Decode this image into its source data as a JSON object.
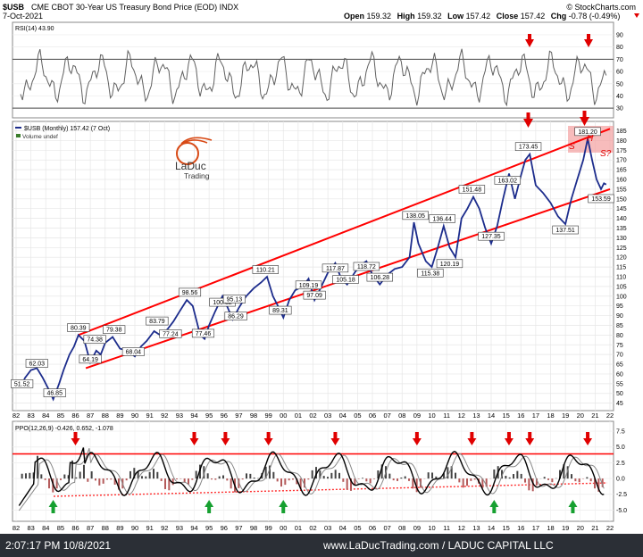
{
  "header": {
    "symbol": "$USB",
    "description": "CME CBOT 30-Year US Treasury Bond Price (EOD)  INDX",
    "date": "7-Oct-2021",
    "watermark": "© StockCharts.com",
    "open_label": "Open",
    "open": "159.32",
    "high_label": "High",
    "high": "159.32",
    "low_label": "Low",
    "low": "157.42",
    "close_label": "Close",
    "close": "157.42",
    "chg_label": "Chg",
    "chg": "-0.78 (-0.49%)"
  },
  "logo": {
    "line1": "LaDuc",
    "line2": "Trading"
  },
  "rsi_panel": {
    "label": "RSI(14) 43.90"
  },
  "price_panel": {
    "label": "$USB (Monthly) 157.42 (7 Oct)",
    "volume_label": "Volume undef"
  },
  "ppo_panel": {
    "label": "PPO(12,26,9) -0.426, 0.652, -1.078"
  },
  "footer": {
    "timestamp": "2:07:17 PM 10/8/2021",
    "credit": "www.LaDucTrading.com / LADUC CAPITAL LLC"
  },
  "colors": {
    "price": "#1c2c8c",
    "channel": "#ff0000",
    "rsi": "#555555",
    "arrow_red": "#e00000",
    "arrow_green": "#16a030",
    "histogram": "#9c4040"
  },
  "chart_data": [
    {
      "type": "line",
      "title": "$USB (Monthly)",
      "x_ticks": [
        "82",
        "83",
        "84",
        "85",
        "86",
        "87",
        "88",
        "89",
        "90",
        "91",
        "92",
        "93",
        "94",
        "95",
        "96",
        "97",
        "98",
        "99",
        "00",
        "01",
        "02",
        "03",
        "04",
        "05",
        "06",
        "07",
        "08",
        "09",
        "10",
        "11",
        "12",
        "13",
        "14",
        "15",
        "16",
        "17",
        "18",
        "19",
        "20",
        "21",
        "22"
      ],
      "y_ticks": [
        45,
        50,
        55,
        60,
        65,
        70,
        75,
        80,
        85,
        90,
        95,
        100,
        105,
        110,
        115,
        120,
        125,
        130,
        135,
        140,
        145,
        150,
        155,
        160,
        165,
        170,
        175,
        180,
        185
      ],
      "ylim": [
        43,
        188
      ],
      "annotations": [
        {
          "x": 82.4,
          "y": 51.52,
          "text": "51.52"
        },
        {
          "x": 83.4,
          "y": 62.03,
          "text": "62.03"
        },
        {
          "x": 84.6,
          "y": 46.85,
          "text": "46.85"
        },
        {
          "x": 86.2,
          "y": 80.39,
          "text": "80.39"
        },
        {
          "x": 87.3,
          "y": 74.38,
          "text": "74.38"
        },
        {
          "x": 87.0,
          "y": 64.19,
          "text": "64.19"
        },
        {
          "x": 88.6,
          "y": 79.38,
          "text": "79.38"
        },
        {
          "x": 89.9,
          "y": 68.04,
          "text": "68.04"
        },
        {
          "x": 91.5,
          "y": 83.79,
          "text": "83.79"
        },
        {
          "x": 92.4,
          "y": 77.24,
          "text": "77.24"
        },
        {
          "x": 93.7,
          "y": 98.56,
          "text": "98.56"
        },
        {
          "x": 94.6,
          "y": 77.46,
          "text": "77.46"
        },
        {
          "x": 95.9,
          "y": 100.32,
          "text": "100.32"
        },
        {
          "x": 96.7,
          "y": 95.13,
          "text": "95.13"
        },
        {
          "x": 96.8,
          "y": 86.29,
          "text": "86.29"
        },
        {
          "x": 98.8,
          "y": 110.21,
          "text": "110.21"
        },
        {
          "x": 99.8,
          "y": 89.31,
          "text": "89.31"
        },
        {
          "x": 101.7,
          "y": 109.19,
          "text": "109.19"
        },
        {
          "x": 102.1,
          "y": 97.09,
          "text": "97.09"
        },
        {
          "x": 103.5,
          "y": 117.87,
          "text": "117.87"
        },
        {
          "x": 104.2,
          "y": 105.18,
          "text": "105.18"
        },
        {
          "x": 105.6,
          "y": 118.72,
          "text": "118.72"
        },
        {
          "x": 106.5,
          "y": 106.28,
          "text": "106.28"
        },
        {
          "x": 108.9,
          "y": 138.05,
          "text": "138.05"
        },
        {
          "x": 109.9,
          "y": 115.38,
          "text": "115.38"
        },
        {
          "x": 110.7,
          "y": 136.44,
          "text": "136.44"
        },
        {
          "x": 111.2,
          "y": 120.19,
          "text": "120.19"
        },
        {
          "x": 112.7,
          "y": 151.48,
          "text": "151.48"
        },
        {
          "x": 114.0,
          "y": 127.35,
          "text": "127.35"
        },
        {
          "x": 115.1,
          "y": 163.02,
          "text": "163.02"
        },
        {
          "x": 116.5,
          "y": 173.45,
          "text": "173.45"
        },
        {
          "x": 119.0,
          "y": 137.51,
          "text": "137.51"
        },
        {
          "x": 120.5,
          "y": 181.2,
          "text": "181.20"
        },
        {
          "x": 121.4,
          "y": 153.59,
          "text": "153.59"
        }
      ],
      "series": [
        {
          "values": [
            [
              82.3,
              53
            ],
            [
              82.6,
              58
            ],
            [
              83.0,
              62
            ],
            [
              83.4,
              63
            ],
            [
              83.8,
              58
            ],
            [
              84.2,
              52
            ],
            [
              84.5,
              47
            ],
            [
              84.9,
              55
            ],
            [
              85.2,
              62
            ],
            [
              85.6,
              70
            ],
            [
              85.9,
              74
            ],
            [
              86.2,
              80
            ],
            [
              86.6,
              77
            ],
            [
              87.0,
              66
            ],
            [
              87.4,
              72
            ],
            [
              87.7,
              70
            ],
            [
              88.0,
              76
            ],
            [
              88.5,
              79
            ],
            [
              89.0,
              73
            ],
            [
              89.5,
              72
            ],
            [
              90.0,
              69
            ],
            [
              90.4,
              74
            ],
            [
              90.8,
              77
            ],
            [
              91.3,
              82
            ],
            [
              91.7,
              80
            ],
            [
              92.2,
              83
            ],
            [
              92.6,
              87
            ],
            [
              93.0,
              92
            ],
            [
              93.5,
              98
            ],
            [
              93.9,
              95
            ],
            [
              94.4,
              80
            ],
            [
              94.7,
              78
            ],
            [
              95.0,
              85
            ],
            [
              95.4,
              92
            ],
            [
              95.9,
              100
            ],
            [
              96.2,
              95
            ],
            [
              96.6,
              88
            ],
            [
              97.0,
              94
            ],
            [
              97.5,
              100
            ],
            [
              98.0,
              104
            ],
            [
              98.5,
              107
            ],
            [
              98.9,
              110
            ],
            [
              99.3,
              100
            ],
            [
              99.7,
              94
            ],
            [
              100.0,
              89
            ],
            [
              100.4,
              98
            ],
            [
              100.8,
              103
            ],
            [
              101.3,
              105
            ],
            [
              101.7,
              109
            ],
            [
              102.1,
              98
            ],
            [
              102.5,
              104
            ],
            [
              103.0,
              112
            ],
            [
              103.5,
              117
            ],
            [
              103.9,
              109
            ],
            [
              104.3,
              106
            ],
            [
              104.8,
              112
            ],
            [
              105.2,
              116
            ],
            [
              105.6,
              118
            ],
            [
              106.0,
              111
            ],
            [
              106.5,
              106
            ],
            [
              107.0,
              111
            ],
            [
              107.5,
              114
            ],
            [
              108.0,
              115
            ],
            [
              108.5,
              120
            ],
            [
              108.8,
              138
            ],
            [
              109.1,
              127
            ],
            [
              109.6,
              118
            ],
            [
              110.0,
              115
            ],
            [
              110.4,
              125
            ],
            [
              110.8,
              136
            ],
            [
              111.2,
              125
            ],
            [
              111.6,
              120
            ],
            [
              112.0,
              140
            ],
            [
              112.4,
              145
            ],
            [
              112.8,
              151
            ],
            [
              113.2,
              145
            ],
            [
              113.6,
              135
            ],
            [
              114.0,
              127
            ],
            [
              114.4,
              136
            ],
            [
              114.8,
              150
            ],
            [
              115.2,
              163
            ],
            [
              115.6,
              150
            ],
            [
              116.0,
              162
            ],
            [
              116.3,
              170
            ],
            [
              116.6,
              173
            ],
            [
              117.0,
              157
            ],
            [
              117.5,
              153
            ],
            [
              118.0,
              148
            ],
            [
              118.5,
              141
            ],
            [
              119.0,
              137
            ],
            [
              119.4,
              150
            ],
            [
              119.8,
              160
            ],
            [
              120.2,
              170
            ],
            [
              120.5,
              181
            ],
            [
              120.8,
              170
            ],
            [
              121.1,
              160
            ],
            [
              121.4,
              155
            ],
            [
              121.6,
              158
            ],
            [
              121.75,
              157.4
            ]
          ]
        }
      ]
    },
    {
      "type": "line",
      "title": "RSI(14)",
      "y_ticks": [
        30,
        40,
        50,
        60,
        70,
        80,
        90
      ],
      "ylim": [
        25,
        98
      ],
      "reference_lines": [
        30,
        70
      ],
      "current": 43.9
    },
    {
      "type": "line",
      "title": "PPO(12,26,9)",
      "y_ticks": [
        7.5,
        5.0,
        2.5,
        0.0,
        -2.5,
        -5.0
      ],
      "ylim": [
        -6.5,
        8.5
      ],
      "reference_lines": [
        3.9
      ],
      "ppo": -0.426,
      "signal": 0.652,
      "histogram": -1.078,
      "sell_arrows_years": [
        86.0,
        94.0,
        96.1,
        99.0,
        103.5,
        109.0,
        112.7,
        115.2,
        116.6,
        120.5
      ],
      "buy_arrows_years": [
        84.5,
        95.0,
        100.0,
        114.2,
        119.5
      ]
    }
  ]
}
